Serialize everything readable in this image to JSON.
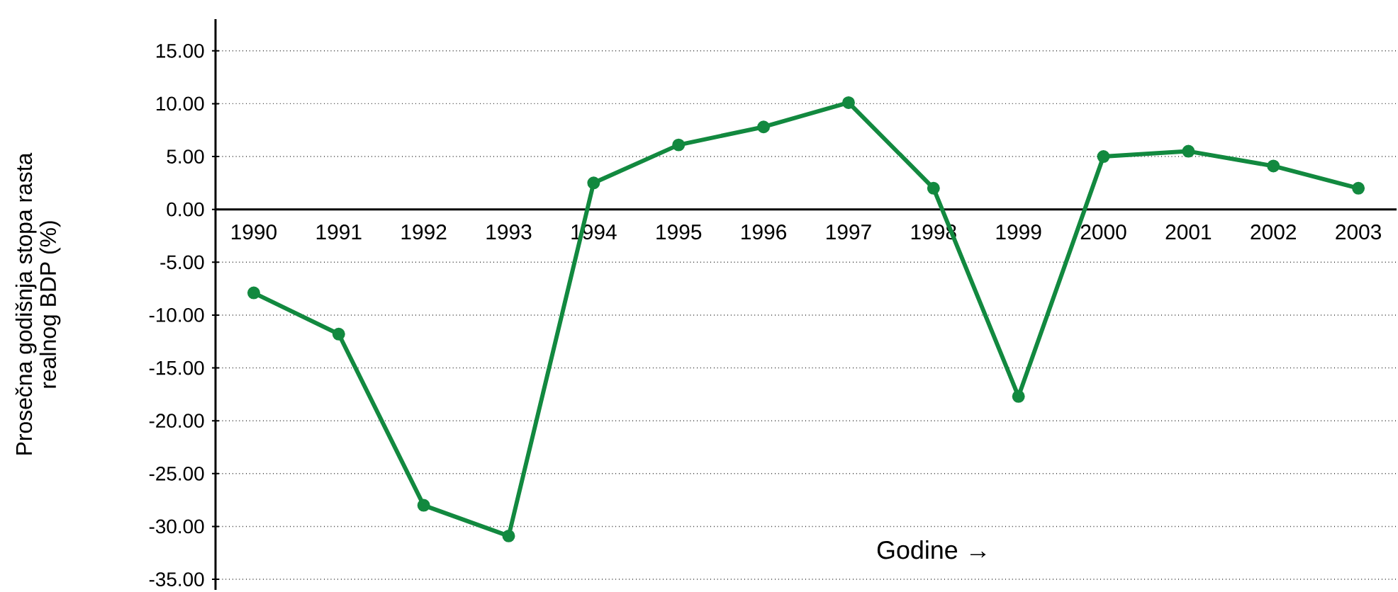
{
  "chart_data": {
    "type": "line",
    "xlabel": "Godine →",
    "ylabel": "Prosečna godišnja stopa rasta realnog BDP (%)",
    "categories": [
      "1990",
      "1991",
      "1992",
      "1993",
      "1994",
      "1995",
      "1996",
      "1997",
      "1998",
      "1999",
      "2000",
      "2001",
      "2002",
      "2003"
    ],
    "series": [
      {
        "color": "#12893f",
        "values": [
          -7.9,
          -11.8,
          -28.0,
          -30.9,
          2.5,
          6.1,
          7.8,
          10.1,
          2.0,
          -17.7,
          5.0,
          5.5,
          4.1,
          2.0
        ]
      }
    ],
    "ylim": [
      -36,
      18
    ],
    "yticks": [
      {
        "value": 15,
        "label": "15.00"
      },
      {
        "value": 10,
        "label": "10.00"
      },
      {
        "value": 5,
        "label": "5.00"
      },
      {
        "value": 0,
        "label": "0.00"
      },
      {
        "value": -5,
        "label": "-5.00"
      },
      {
        "value": -10,
        "label": "-10.00"
      },
      {
        "value": -15,
        "label": "-15.00"
      },
      {
        "value": -20,
        "label": "-20.00"
      },
      {
        "value": -25,
        "label": "-25.00"
      },
      {
        "value": -30,
        "label": "-30.00"
      },
      {
        "value": -35,
        "label": "-35.00"
      }
    ],
    "grid": "y",
    "marker": "circle",
    "line_style": "solid"
  }
}
